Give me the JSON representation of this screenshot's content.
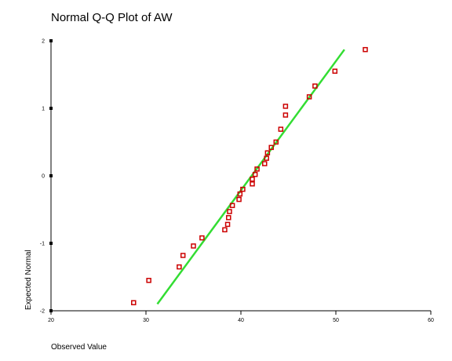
{
  "chart_data": {
    "type": "scatter",
    "title": "Normal Q-Q Plot of AW",
    "xlabel": "Observed Value",
    "ylabel": "Expected Normal",
    "xlim": [
      20,
      60
    ],
    "ylim": [
      -2,
      2
    ],
    "x_ticks": [
      "20",
      "30",
      "40",
      "50",
      "60"
    ],
    "y_ticks": [
      "2",
      "1",
      "0",
      "-1",
      "-2"
    ],
    "grid": false,
    "points": [
      {
        "x": 28.7,
        "y": -1.88
      },
      {
        "x": 30.3,
        "y": -1.55
      },
      {
        "x": 33.5,
        "y": -1.35
      },
      {
        "x": 33.9,
        "y": -1.18
      },
      {
        "x": 35.0,
        "y": -1.04
      },
      {
        "x": 35.9,
        "y": -0.92
      },
      {
        "x": 38.3,
        "y": -0.8
      },
      {
        "x": 38.6,
        "y": -0.72
      },
      {
        "x": 38.7,
        "y": -0.62
      },
      {
        "x": 38.8,
        "y": -0.53
      },
      {
        "x": 39.1,
        "y": -0.44
      },
      {
        "x": 39.8,
        "y": -0.35
      },
      {
        "x": 39.9,
        "y": -0.27
      },
      {
        "x": 40.2,
        "y": -0.2
      },
      {
        "x": 41.2,
        "y": -0.12
      },
      {
        "x": 41.2,
        "y": -0.05
      },
      {
        "x": 41.5,
        "y": 0.02
      },
      {
        "x": 41.7,
        "y": 0.1
      },
      {
        "x": 42.5,
        "y": 0.18
      },
      {
        "x": 42.7,
        "y": 0.26
      },
      {
        "x": 42.8,
        "y": 0.34
      },
      {
        "x": 43.2,
        "y": 0.42
      },
      {
        "x": 43.7,
        "y": 0.5
      },
      {
        "x": 44.2,
        "y": 0.69
      },
      {
        "x": 44.7,
        "y": 0.9
      },
      {
        "x": 44.7,
        "y": 1.03
      },
      {
        "x": 47.2,
        "y": 1.17
      },
      {
        "x": 47.8,
        "y": 1.33
      },
      {
        "x": 49.9,
        "y": 1.55
      },
      {
        "x": 53.1,
        "y": 1.87
      }
    ],
    "reference_line": {
      "x": [
        31.2,
        50.9
      ],
      "y": [
        -1.9,
        1.87
      ]
    },
    "colors": {
      "points": "#cc0000",
      "line": "#33dd33",
      "axes": "#000000"
    }
  }
}
